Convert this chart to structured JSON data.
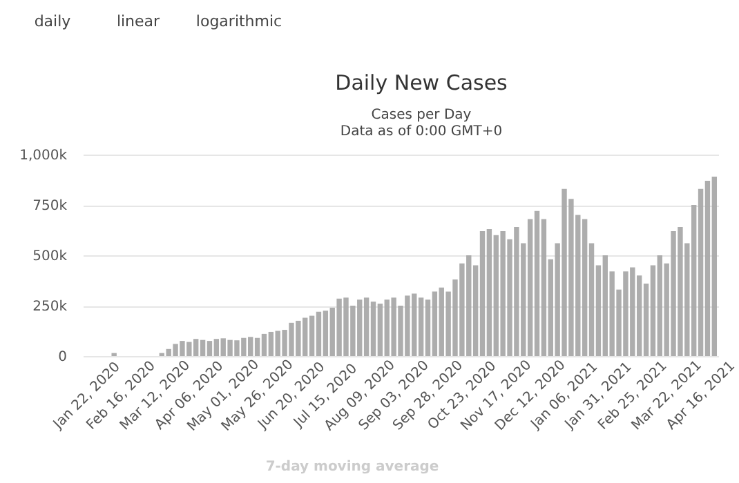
{
  "chart_data": {
    "type": "bar",
    "title": "Daily New Cases",
    "subtitle": "Cases per Day\nData as of 0:00 GMT+0",
    "annotations": [
      "daily",
      "linear",
      "logarithmic",
      "7-day moving average"
    ],
    "categories": [
      "Jan 22, 2020",
      null,
      null,
      null,
      null,
      "Feb 16, 2020",
      null,
      null,
      null,
      null,
      "Mar 12, 2020",
      null,
      null,
      null,
      null,
      "Apr 06, 2020",
      null,
      null,
      null,
      null,
      "May 01, 2020",
      null,
      null,
      null,
      null,
      "May 26, 2020",
      null,
      null,
      null,
      null,
      "Jun 20, 2020",
      null,
      null,
      null,
      null,
      "Jul 15, 2020",
      null,
      null,
      null,
      null,
      "Aug 09, 2020",
      null,
      null,
      null,
      null,
      "Sep 03, 2020",
      null,
      null,
      null,
      null,
      "Sep 28, 2020",
      null,
      null,
      null,
      null,
      "Oct 23, 2020",
      null,
      null,
      null,
      null,
      "Nov 17, 2020",
      null,
      null,
      null,
      null,
      "Dec 12, 2020",
      null,
      null,
      null,
      null,
      "Jan 06, 2021",
      null,
      null,
      null,
      null,
      "Jan 31, 2021",
      null,
      null,
      null,
      null,
      "Feb 25, 2021",
      null,
      null,
      null,
      null,
      "Mar 22, 2021",
      null,
      null,
      null,
      null,
      "Apr 16, 2021",
      null,
      null
    ],
    "values": [
      null,
      null,
      null,
      null,
      15000,
      null,
      null,
      null,
      null,
      null,
      null,
      15000,
      35000,
      60000,
      75000,
      70000,
      85000,
      80000,
      75000,
      85000,
      88000,
      80000,
      78000,
      90000,
      95000,
      90000,
      110000,
      120000,
      125000,
      130000,
      165000,
      175000,
      190000,
      200000,
      220000,
      225000,
      240000,
      285000,
      290000,
      250000,
      280000,
      290000,
      270000,
      260000,
      280000,
      290000,
      250000,
      300000,
      310000,
      290000,
      280000,
      320000,
      340000,
      320000,
      380000,
      460000,
      500000,
      450000,
      620000,
      630000,
      600000,
      620000,
      580000,
      640000,
      560000,
      680000,
      720000,
      680000,
      480000,
      560000,
      830000,
      780000,
      700000,
      680000,
      560000,
      450000,
      500000,
      420000,
      330000,
      420000,
      440000,
      400000,
      360000,
      450000,
      500000,
      460000,
      620000,
      640000,
      560000,
      750000,
      830000,
      870000,
      890000
    ],
    "color": "#a9a9a9",
    "ylim": [
      0,
      1000000
    ],
    "yticks": [
      0,
      {
        "value": 250000,
        "label": "250k"
      },
      {
        "value": 500000,
        "label": "500k"
      },
      {
        "value": 750000,
        "label": "750k"
      },
      {
        "value": 1000000,
        "label": "1,000k"
      }
    ],
    "grid": "y"
  }
}
